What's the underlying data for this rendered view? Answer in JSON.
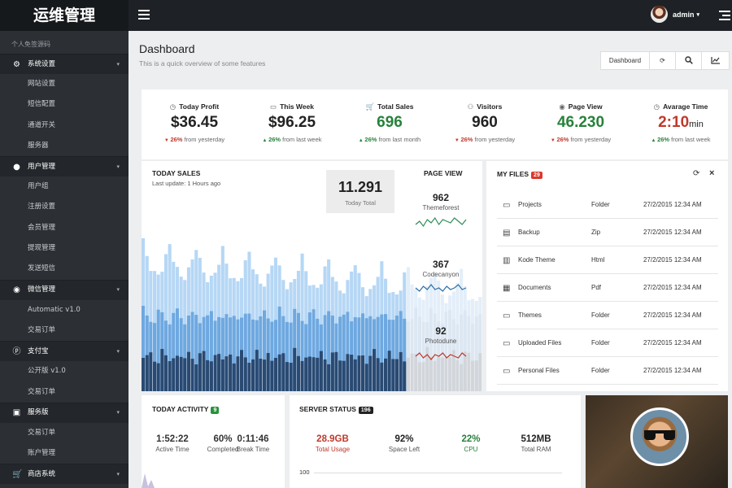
{
  "app_title": "运维管理",
  "user": {
    "name": "admin"
  },
  "sidebar": {
    "header": "个人免签源码",
    "groups": [
      {
        "label": "系统设置",
        "icon": "gear-icon",
        "items": [
          "网站设置",
          "短信配置",
          "通道开关",
          "服务器"
        ]
      },
      {
        "label": "用户管理",
        "icon": "user-icon",
        "items": [
          "用户组",
          "注册设置",
          "会员管理",
          "提现管理",
          "发送短信"
        ]
      },
      {
        "label": "微信管理",
        "icon": "wechat-icon",
        "items": [
          "Automatic v1.0",
          "交易订单"
        ]
      },
      {
        "label": "支付宝",
        "icon": "alipay-icon",
        "items": [
          "公开版 v1.0",
          "交易订单"
        ]
      },
      {
        "label": "服务版",
        "icon": "service-icon",
        "items": [
          "交易订单",
          "账户管理"
        ]
      },
      {
        "label": "商店系统",
        "icon": "cart-icon",
        "items": []
      }
    ]
  },
  "page": {
    "title": "Dashboard",
    "subtitle": "This is a quick overview of some features"
  },
  "toolbar": {
    "dashboard_label": "Dashboard"
  },
  "stats": [
    {
      "label": "Today Profit",
      "icon": "clock-icon",
      "value": "$36.45",
      "unit": "",
      "dir": "down",
      "pct": "26%",
      "ref": "from yesterday",
      "color": "#222222"
    },
    {
      "label": "This Week",
      "icon": "calendar-icon",
      "value": "$96.25",
      "unit": "",
      "dir": "up",
      "pct": "26%",
      "ref": "from last week",
      "color": "#222222"
    },
    {
      "label": "Total Sales",
      "icon": "cart-icon",
      "value": "696",
      "unit": "",
      "dir": "up",
      "pct": "26%",
      "ref": "from last month",
      "color": "#27823b"
    },
    {
      "label": "Visitors",
      "icon": "users-icon",
      "value": "960",
      "unit": "",
      "dir": "down",
      "pct": "26%",
      "ref": "from yesterday",
      "color": "#222222"
    },
    {
      "label": "Page View",
      "icon": "eye-icon",
      "value": "46.230",
      "unit": "",
      "dir": "down",
      "pct": "26%",
      "ref": "from yesterday",
      "color": "#27823b"
    },
    {
      "label": "Avarage Time",
      "icon": "clock-icon",
      "value": "2:10",
      "unit": "min",
      "dir": "up",
      "pct": "26%",
      "ref": "from last week",
      "color": "#c0392b"
    }
  ],
  "sales": {
    "title": "TODAY SALES",
    "subtitle": "Last update: 1 Hours ago",
    "total_value": "11.291",
    "total_label": "Today Total",
    "page_view_title": "PAGE VIEW",
    "sites": [
      {
        "value": "962",
        "name": "Themeforest",
        "color": "#2e8b57",
        "points": [
          4,
          6,
          3,
          7,
          5,
          8,
          4,
          7,
          6,
          5,
          8,
          6,
          4,
          7
        ]
      },
      {
        "value": "367",
        "name": "Codecanyon",
        "color": "#2f6fa8",
        "points": [
          6,
          4,
          7,
          5,
          8,
          5,
          6,
          4,
          7,
          5,
          6,
          8,
          5,
          6
        ]
      },
      {
        "value": "92",
        "name": "Photodune",
        "color": "#c0392b",
        "points": [
          5,
          7,
          4,
          6,
          3,
          6,
          5,
          7,
          4,
          6,
          5,
          4,
          7,
          5
        ]
      }
    ]
  },
  "files": {
    "title": "MY FILES",
    "count": "29",
    "badge_color": "#d9382c",
    "rows": [
      {
        "icon": "folder-icon",
        "name": "Projects",
        "type": "Folder",
        "date": "27/2/2015 12:34 AM"
      },
      {
        "icon": "zip-file-icon",
        "name": "Backup",
        "type": "Zip",
        "date": "27/2/2015 12:34 AM"
      },
      {
        "icon": "code-file-icon",
        "name": "Kode Theme",
        "type": "Html",
        "date": "27/2/2015 12:34 AM"
      },
      {
        "icon": "pdf-file-icon",
        "name": "Documents",
        "type": "Pdf",
        "date": "27/2/2015 12:34 AM"
      },
      {
        "icon": "folder-icon",
        "name": "Themes",
        "type": "Folder",
        "date": "27/2/2015 12:34 AM"
      },
      {
        "icon": "folder-icon",
        "name": "Uploaded Files",
        "type": "Folder",
        "date": "27/2/2015 12:34 AM"
      },
      {
        "icon": "folder-icon",
        "name": "Personal Files",
        "type": "Folder",
        "date": "27/2/2015 12:34 AM"
      }
    ]
  },
  "activity": {
    "title": "TODAY ACTIVITY",
    "count": "9",
    "badge_color": "#27923b",
    "metrics": [
      {
        "value": "1:52:22",
        "label": "Active Time"
      },
      {
        "value": "60%",
        "label": "Completed"
      },
      {
        "value": "0:11:46",
        "label": "Break Time"
      }
    ]
  },
  "server": {
    "title": "SERVER STATUS",
    "count": "196",
    "badge_color": "#222222",
    "metrics": [
      {
        "value": "28.9GB",
        "label": "Total Usage",
        "color": "#c0392b"
      },
      {
        "value": "92%",
        "label": "Space Left",
        "color": "#222222"
      },
      {
        "value": "22%",
        "label": "CPU",
        "color": "#27823b"
      },
      {
        "value": "512MB",
        "label": "Total RAM",
        "color": "#222222"
      }
    ],
    "axis_tick": "100"
  }
}
